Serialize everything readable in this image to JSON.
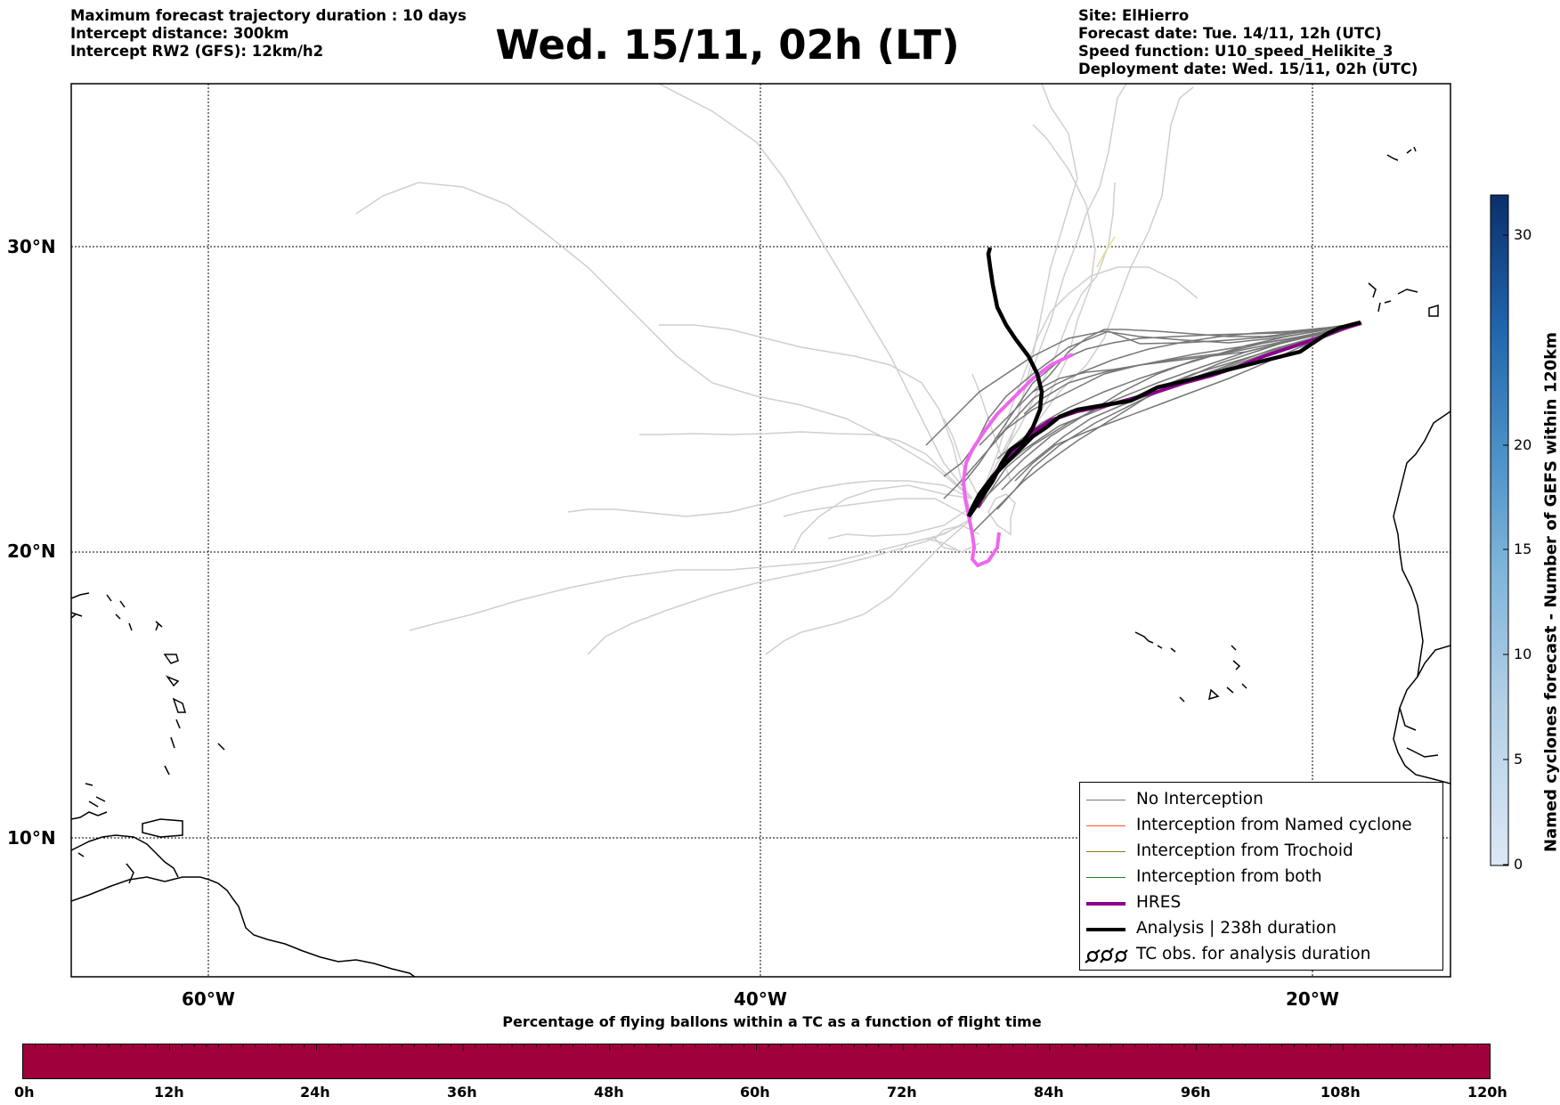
{
  "header": {
    "left_lines": [
      "Maximum forecast trajectory duration : 10 days",
      "Intercept distance: 300km",
      "Intercept RW2 (GFS):  12km/h2"
    ],
    "title": "Wed. 15/11, 02h (LT)",
    "right_lines": [
      "Site: ElHierro",
      "Forecast date: Tue. 14/11, 12h (UTC)",
      "Speed function: U10_speed_Helikite_3",
      "Deployment date: Wed. 15/11, 02h (UTC)"
    ]
  },
  "map": {
    "projection": "Mercator",
    "extent": {
      "lon_min": -65,
      "lon_max": -15,
      "lat_min": 5,
      "lat_max": 35
    },
    "lat_labels": [
      "30°N",
      "20°N",
      "10°N"
    ],
    "lon_labels": [
      "60°W",
      "40°W",
      "20°W"
    ],
    "gridline_style": "dotted",
    "land_style": "black coastline outline, white fill",
    "trajectory_colors": {
      "gefs_not_intercepted": "#cfcfcf",
      "no_interception": "#777777",
      "interception_named_cyclone": "#ff5a1e",
      "interception_trochoid": "#808020",
      "interception_both": "#208020",
      "hres": "#8b008b",
      "analysis": "#000000",
      "highlight": "#ee66ee",
      "trochoid_trace": "#e0e08a"
    }
  },
  "legend": {
    "items": [
      {
        "label": "No Interception",
        "color": "#777777",
        "width": 1
      },
      {
        "label": "Interception from Named cyclone",
        "color": "#ff5a1e",
        "width": 1
      },
      {
        "label": "Interception from Trochoid",
        "color": "#808020",
        "width": 1
      },
      {
        "label": "Interception from both",
        "color": "#208020",
        "width": 1
      },
      {
        "label": "HRES",
        "color": "#8b008b",
        "width": 3
      },
      {
        "label": "Analysis | 238h duration",
        "color": "#000000",
        "width": 3
      },
      {
        "label": "TC obs. for analysis duration",
        "icon": "tc-symbols-icon"
      }
    ]
  },
  "colorbar": {
    "title": "Named cyclones forecast - Number of GEFS within 120km",
    "ticks": [
      "30",
      "20",
      "15",
      "10",
      "5",
      "0"
    ],
    "color_low": "#dbe8f6",
    "color_high": "#0b2f6b"
  },
  "bottom_bar": {
    "title": "Percentage of flying ballons within a TC as a function of flight time",
    "fill_color": "#a0003c",
    "time_labels": [
      "0h",
      "12h",
      "24h",
      "36h",
      "48h",
      "60h",
      "72h",
      "84h",
      "96h",
      "108h",
      "120h"
    ]
  }
}
